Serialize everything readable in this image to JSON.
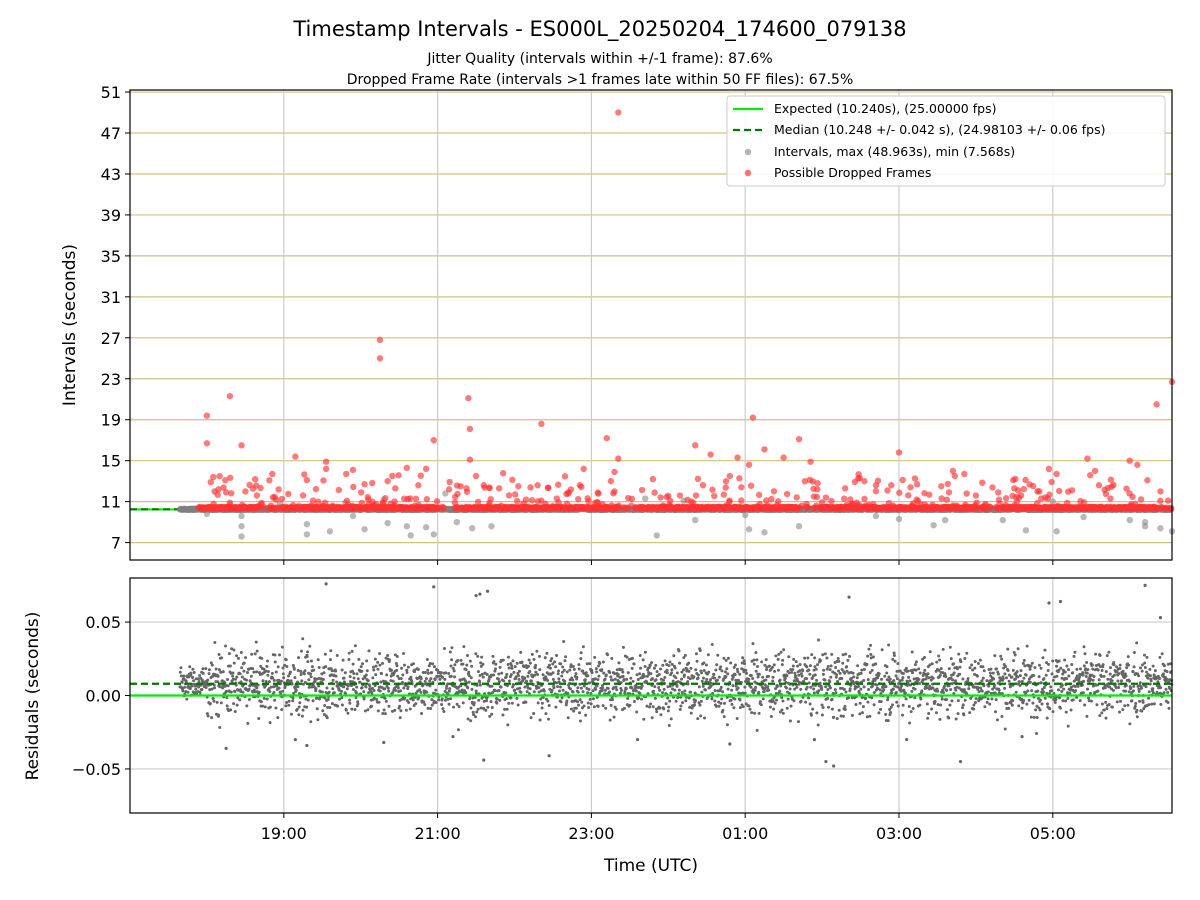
{
  "header": {
    "title": "Timestamp Intervals - ES000L_20250204_174600_079138",
    "subtitle_1": "Jitter Quality (intervals within +/-1 frame): 87.6%",
    "subtitle_2": "Dropped Frame Rate (intervals >1 frames late within 50 FF files): 67.5%"
  },
  "colors": {
    "expected": "#00ee00",
    "median": "#007700",
    "intervals": "#808080",
    "dropped": "#ff3333",
    "hgrid": "#d2c080",
    "vgrid": "#cccccc",
    "residuals": "#666666"
  },
  "chart_data": [
    {
      "type": "scatter",
      "ylabel": "Intervals (seconds)",
      "ylim": [
        5.3,
        51.2
      ],
      "xlim_hours": [
        17.0,
        30.55
      ],
      "yticks": [
        "7",
        "11",
        "15",
        "19",
        "23",
        "27",
        "31",
        "35",
        "39",
        "43",
        "47",
        "51"
      ],
      "ytick_values": [
        7,
        11,
        15,
        19,
        23,
        27,
        31,
        35,
        39,
        43,
        47,
        51
      ],
      "grid": "horizontal-and-vertical",
      "legend_position": "top-right",
      "legend": [
        {
          "label": "Expected (10.240s), (25.00000 fps)",
          "kind": "solid-line"
        },
        {
          "label": "Median (10.248 +/- 0.042 s), (24.98103 +/- 0.06 fps)",
          "kind": "dashed-line"
        },
        {
          "label": "Intervals, max (48.963s), min (7.568s)",
          "kind": "gray-dot"
        },
        {
          "label": "Possible Dropped Frames",
          "kind": "red-dot"
        }
      ],
      "expected_value": 10.24,
      "median_value": 10.248,
      "interval_range": {
        "max": 48.963,
        "min": 7.568
      },
      "data_start_hour": 17.65,
      "data_end_hour": 30.55,
      "dropped_points": [
        [
          18.0,
          19.4
        ],
        [
          18.0,
          16.7
        ],
        [
          18.05,
          12.9
        ],
        [
          18.1,
          12.0
        ],
        [
          18.15,
          12.2
        ],
        [
          18.3,
          21.3
        ],
        [
          18.45,
          16.5
        ],
        [
          18.5,
          12.0
        ],
        [
          18.65,
          11.6
        ],
        [
          18.85,
          13.7
        ],
        [
          18.9,
          11.2
        ],
        [
          19.15,
          15.4
        ],
        [
          19.3,
          13.1
        ],
        [
          19.25,
          11.6
        ],
        [
          19.55,
          14.9
        ],
        [
          19.55,
          14.2
        ],
        [
          19.9,
          14.1
        ],
        [
          20.05,
          12.7
        ],
        [
          20.1,
          11.2
        ],
        [
          20.25,
          26.8
        ],
        [
          20.25,
          25.0
        ],
        [
          20.35,
          13.0
        ],
        [
          20.45,
          12.3
        ],
        [
          20.6,
          14.3
        ],
        [
          20.75,
          12.6
        ],
        [
          20.85,
          14.2
        ],
        [
          20.95,
          17.0
        ],
        [
          21.15,
          12.2
        ],
        [
          21.3,
          12.5
        ],
        [
          21.4,
          21.1
        ],
        [
          21.42,
          18.1
        ],
        [
          21.42,
          15.1
        ],
        [
          21.5,
          13.5
        ],
        [
          21.6,
          12.6
        ],
        [
          21.8,
          12.3
        ],
        [
          22.05,
          12.5
        ],
        [
          22.15,
          11.2
        ],
        [
          22.3,
          12.6
        ],
        [
          22.35,
          18.6
        ],
        [
          22.55,
          11.3
        ],
        [
          22.7,
          11.8
        ],
        [
          22.85,
          12.6
        ],
        [
          22.9,
          14.2
        ],
        [
          23.2,
          17.2
        ],
        [
          23.3,
          13.9
        ],
        [
          23.35,
          15.2
        ],
        [
          23.35,
          49.0
        ],
        [
          23.3,
          12.0
        ],
        [
          23.8,
          13.2
        ],
        [
          23.9,
          11.4
        ],
        [
          24.3,
          11.0
        ],
        [
          24.35,
          16.5
        ],
        [
          24.45,
          12.6
        ],
        [
          24.55,
          15.6
        ],
        [
          24.8,
          13.5
        ],
        [
          24.9,
          15.3
        ],
        [
          24.95,
          12.4
        ],
        [
          25.05,
          14.6
        ],
        [
          25.1,
          19.2
        ],
        [
          25.25,
          16.1
        ],
        [
          25.5,
          15.3
        ],
        [
          25.7,
          17.1
        ],
        [
          25.85,
          14.9
        ],
        [
          26.05,
          11.4
        ],
        [
          26.3,
          12.3
        ],
        [
          26.55,
          13.0
        ],
        [
          26.7,
          12.6
        ],
        [
          26.9,
          12.6
        ],
        [
          27.0,
          15.8
        ],
        [
          27.15,
          12.4
        ],
        [
          27.55,
          12.5
        ],
        [
          27.65,
          11.9
        ],
        [
          27.7,
          14.0
        ],
        [
          27.85,
          13.7
        ],
        [
          28.0,
          11.6
        ],
        [
          28.3,
          11.2
        ],
        [
          28.5,
          12.3
        ],
        [
          28.55,
          12.1
        ],
        [
          28.85,
          11.3
        ],
        [
          28.95,
          14.2
        ],
        [
          29.05,
          13.7
        ],
        [
          29.25,
          12.1
        ],
        [
          29.45,
          15.2
        ],
        [
          29.55,
          14.0
        ],
        [
          29.6,
          12.6
        ],
        [
          29.75,
          11.3
        ],
        [
          30.0,
          15.0
        ],
        [
          30.1,
          14.6
        ],
        [
          30.35,
          20.5
        ],
        [
          30.4,
          12.0
        ],
        [
          30.55,
          22.7
        ],
        [
          30.5,
          11.1
        ]
      ],
      "gray_points": [
        [
          17.75,
          10.2
        ],
        [
          18.0,
          9.8
        ],
        [
          18.3,
          10.7
        ],
        [
          18.45,
          9.6
        ],
        [
          18.45,
          8.6
        ],
        [
          18.45,
          7.6
        ],
        [
          18.95,
          10.8
        ],
        [
          19.2,
          10.6
        ],
        [
          19.3,
          8.8
        ],
        [
          19.3,
          7.8
        ],
        [
          19.6,
          8.1
        ],
        [
          19.8,
          10.9
        ],
        [
          19.9,
          9.6
        ],
        [
          20.05,
          8.3
        ],
        [
          20.3,
          11.2
        ],
        [
          20.35,
          8.9
        ],
        [
          20.6,
          8.6
        ],
        [
          20.65,
          7.7
        ],
        [
          20.85,
          8.5
        ],
        [
          20.95,
          7.8
        ],
        [
          21.1,
          11.8
        ],
        [
          21.25,
          9.0
        ],
        [
          21.45,
          8.4
        ],
        [
          21.7,
          8.6
        ],
        [
          22.5,
          10.6
        ],
        [
          23.7,
          11.3
        ],
        [
          23.85,
          7.7
        ],
        [
          24.2,
          11.1
        ],
        [
          24.35,
          9.2
        ],
        [
          25.0,
          9.7
        ],
        [
          25.05,
          8.3
        ],
        [
          25.25,
          8.0
        ],
        [
          25.7,
          8.6
        ],
        [
          26.25,
          10.5
        ],
        [
          26.7,
          9.6
        ],
        [
          27.0,
          9.3
        ],
        [
          27.45,
          8.7
        ],
        [
          27.6,
          9.2
        ],
        [
          28.1,
          10.5
        ],
        [
          28.35,
          9.2
        ],
        [
          28.65,
          8.2
        ],
        [
          29.0,
          11.0
        ],
        [
          29.05,
          8.1
        ],
        [
          29.4,
          9.5
        ],
        [
          29.6,
          10.4
        ],
        [
          30.0,
          9.2
        ],
        [
          30.2,
          9.0
        ],
        [
          30.2,
          8.6
        ],
        [
          30.4,
          8.4
        ],
        [
          30.55,
          8.1
        ]
      ]
    },
    {
      "type": "scatter",
      "ylabel": "Residuals (seconds)",
      "xlabel": "Time (UTC)",
      "ylim": [
        -0.08,
        0.08
      ],
      "xlim_hours": [
        17.0,
        30.55
      ],
      "yticks": [
        "0.05",
        "0.00",
        "−0.05"
      ],
      "ytick_values": [
        0.05,
        0.0,
        -0.05
      ],
      "xticks": [
        "19:00",
        "21:00",
        "23:00",
        "01:00",
        "03:00",
        "05:00"
      ],
      "xtick_hours": [
        19,
        21,
        23,
        25,
        27,
        29
      ],
      "expected_value": 0.0,
      "median_value": 0.008,
      "typical_spread": 0.015,
      "outliers": [
        [
          19.55,
          0.076
        ],
        [
          20.95,
          0.074
        ],
        [
          21.5,
          0.068
        ],
        [
          21.55,
          0.069
        ],
        [
          21.65,
          0.071
        ],
        [
          26.35,
          0.067
        ],
        [
          28.95,
          0.063
        ],
        [
          29.1,
          0.064
        ],
        [
          30.2,
          0.075
        ],
        [
          30.4,
          0.053
        ],
        [
          18.25,
          -0.036
        ],
        [
          19.3,
          -0.034
        ],
        [
          21.6,
          -0.044
        ],
        [
          22.45,
          -0.041
        ],
        [
          26.05,
          -0.045
        ],
        [
          26.15,
          -0.048
        ],
        [
          27.8,
          -0.045
        ],
        [
          18.15,
          -0.014
        ],
        [
          19.15,
          -0.03
        ],
        [
          20.3,
          -0.032
        ],
        [
          21.2,
          -0.028
        ],
        [
          23.6,
          -0.03
        ],
        [
          24.8,
          -0.033
        ],
        [
          25.9,
          -0.03
        ],
        [
          27.1,
          -0.03
        ],
        [
          28.6,
          -0.028
        ]
      ]
    }
  ]
}
